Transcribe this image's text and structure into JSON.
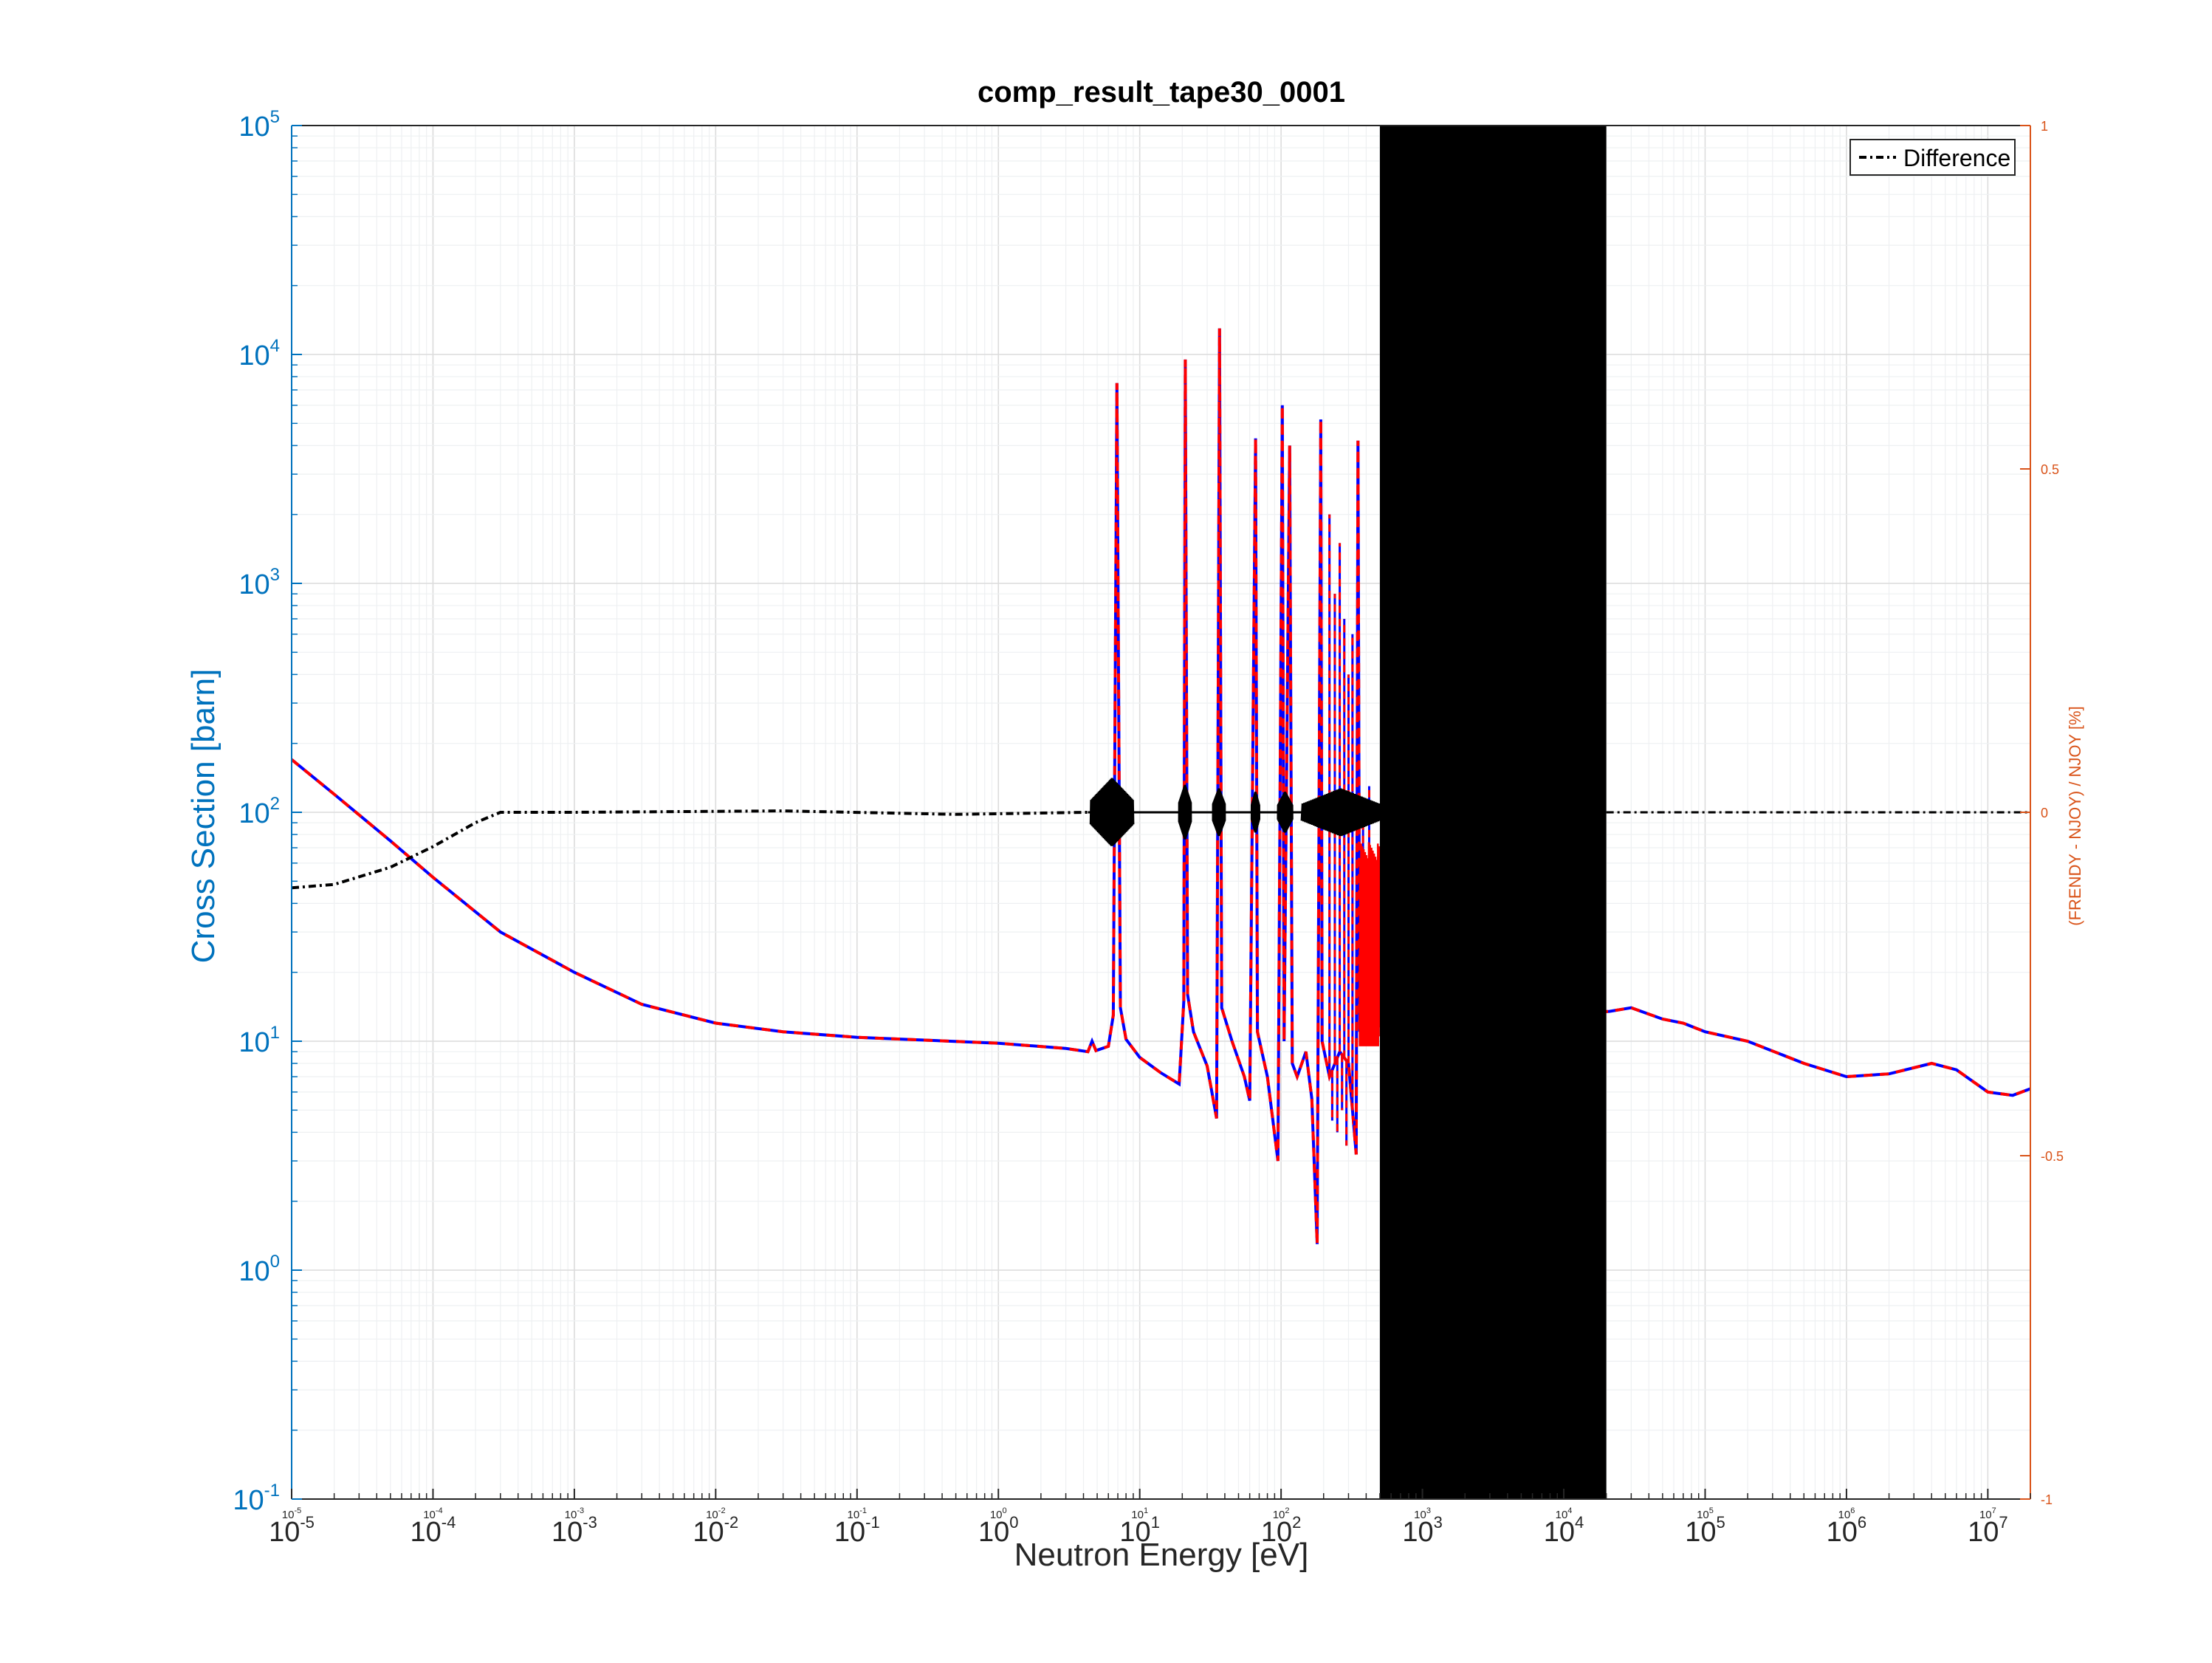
{
  "chart_data": {
    "type": "line",
    "title": "comp_result_tape30_0001",
    "xlabel": "Neutron Energy [eV]",
    "ylabel_left": "Cross Section [barn]",
    "ylabel_right": "(FRENDY - NJOY) / NJOY [%]",
    "x_scale": "log",
    "y_left_scale": "log",
    "xlim": [
      1e-05,
      20000000.0
    ],
    "ylim_left": [
      0.1,
      100000
    ],
    "ylim_right": [
      -1,
      1
    ],
    "x_ticks": [
      {
        "base": "10",
        "exp": "-5"
      },
      {
        "base": "10",
        "exp": "-4"
      },
      {
        "base": "10",
        "exp": "-3"
      },
      {
        "base": "10",
        "exp": "-2"
      },
      {
        "base": "10",
        "exp": "-1"
      },
      {
        "base": "10",
        "exp": "0"
      },
      {
        "base": "10",
        "exp": "1"
      },
      {
        "base": "10",
        "exp": "2"
      },
      {
        "base": "10",
        "exp": "3"
      },
      {
        "base": "10",
        "exp": "4"
      },
      {
        "base": "10",
        "exp": "5"
      },
      {
        "base": "10",
        "exp": "6"
      },
      {
        "base": "10",
        "exp": "7"
      }
    ],
    "y_left_ticks": [
      {
        "base": "10",
        "exp": "-1"
      },
      {
        "base": "10",
        "exp": "0"
      },
      {
        "base": "10",
        "exp": "1"
      },
      {
        "base": "10",
        "exp": "2"
      },
      {
        "base": "10",
        "exp": "3"
      },
      {
        "base": "10",
        "exp": "4"
      },
      {
        "base": "10",
        "exp": "5"
      }
    ],
    "y_right_ticks": [
      "-1",
      "-0.5",
      "0",
      "0.5",
      "1"
    ],
    "grid": true,
    "legend": {
      "entries": [
        "Difference"
      ],
      "position": "top-right"
    },
    "colors": {
      "njoy": "#ff0000",
      "frendy": "#0000ff",
      "difference": "#000000",
      "left_axis": "#0072bd",
      "right_axis": "#d95319"
    },
    "series": [
      {
        "role": "cross_section",
        "smooth": [
          [
            1e-05,
            170
          ],
          [
            2e-05,
            120
          ],
          [
            5e-05,
            75
          ],
          [
            0.0001,
            52
          ],
          [
            0.0003,
            30
          ],
          [
            0.001,
            20
          ],
          [
            0.003,
            14.5
          ],
          [
            0.01,
            12
          ],
          [
            0.03,
            11
          ],
          [
            0.1,
            10.4
          ],
          [
            1,
            9.8
          ],
          [
            3,
            9.3
          ],
          [
            4.3,
            9.0
          ],
          [
            4.6,
            10
          ],
          [
            4.9,
            9.1
          ],
          [
            6,
            9.5
          ],
          [
            6.5,
            13
          ],
          [
            6.9,
            7500
          ],
          [
            7.3,
            14
          ],
          [
            8,
            10.2
          ],
          [
            10,
            8.5
          ],
          [
            14,
            7.3
          ],
          [
            19,
            6.5
          ],
          [
            20.5,
            15
          ],
          [
            21,
            9500
          ],
          [
            21.8,
            16
          ],
          [
            24,
            11
          ],
          [
            30,
            7.8
          ],
          [
            35,
            4.6
          ],
          [
            36.7,
            13000
          ],
          [
            38,
            14
          ],
          [
            45,
            10
          ],
          [
            55,
            7
          ],
          [
            60,
            5.5
          ],
          [
            66,
            4300
          ],
          [
            68,
            11
          ],
          [
            80,
            7
          ],
          [
            95,
            3
          ],
          [
            102,
            6000
          ],
          [
            105,
            10
          ],
          [
            115,
            4000
          ],
          [
            120,
            8
          ],
          [
            130,
            7
          ],
          [
            150,
            9
          ],
          [
            165,
            5.6
          ],
          [
            180,
            1.3
          ],
          [
            191,
            5200
          ],
          [
            195,
            10
          ],
          [
            220,
            7
          ],
          [
            260,
            9
          ],
          [
            300,
            8
          ],
          [
            340,
            3.2
          ],
          [
            350,
            4200
          ],
          [
            360,
            11
          ],
          [
            400,
            15
          ],
          [
            450,
            12
          ],
          [
            500,
            12
          ],
          [
            21000,
            13.5
          ],
          [
            30000,
            14
          ],
          [
            50000,
            12.5
          ],
          [
            70000,
            12
          ],
          [
            100000,
            11
          ],
          [
            200000,
            10
          ],
          [
            500000,
            8
          ],
          [
            1000000,
            7
          ],
          [
            2000000,
            7.2
          ],
          [
            4000000,
            8
          ],
          [
            6000000,
            7.5
          ],
          [
            10000000,
            6
          ],
          [
            15000000,
            5.8
          ],
          [
            20000000,
            6.2
          ]
        ],
        "resonances": [
          [
            220,
            2000
          ],
          [
            240,
            900
          ],
          [
            260,
            1500
          ],
          [
            280,
            700
          ],
          [
            300,
            400
          ],
          [
            320,
            600
          ],
          [
            380,
            90
          ],
          [
            420,
            130
          ],
          [
            460,
            60
          ]
        ],
        "dips": [
          [
            230,
            4.5
          ],
          [
            250,
            4
          ],
          [
            270,
            5
          ],
          [
            290,
            3.5
          ],
          [
            330,
            4.5
          ]
        ]
      },
      {
        "role": "difference",
        "base": [
          [
            1e-05,
            -0.11
          ],
          [
            2e-05,
            -0.105
          ],
          [
            5e-05,
            -0.08
          ],
          [
            0.0001,
            -0.05
          ],
          [
            0.0002,
            -0.015
          ],
          [
            0.0003,
            0
          ],
          [
            0.001,
            0
          ],
          [
            0.03,
            0.002
          ],
          [
            0.5,
            -0.003
          ],
          [
            4.3,
            0
          ]
        ],
        "flat_after": [
          [
            20000,
            0
          ],
          [
            20000000,
            0
          ]
        ],
        "oscillation_zones": [
          [
            4.5,
            9,
            0.05
          ],
          [
            19,
            23,
            0.04
          ],
          [
            33,
            40,
            0.035
          ],
          [
            62,
            70,
            0.03
          ],
          [
            95,
            120,
            0.03
          ],
          [
            140,
            500,
            0.035
          ]
        ]
      }
    ],
    "dense_band_x": [
      500,
      20000
    ]
  }
}
